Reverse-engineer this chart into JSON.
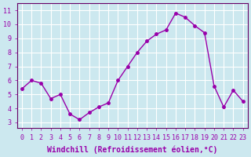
{
  "x": [
    0,
    1,
    2,
    3,
    4,
    5,
    6,
    7,
    8,
    9,
    10,
    11,
    12,
    13,
    14,
    15,
    16,
    17,
    18,
    19,
    20,
    21,
    22,
    23
  ],
  "y": [
    5.4,
    6.0,
    5.8,
    4.7,
    5.0,
    3.6,
    3.2,
    3.7,
    4.1,
    4.4,
    6.0,
    7.0,
    8.0,
    8.8,
    9.3,
    9.6,
    10.8,
    10.5,
    9.9,
    9.4,
    5.6,
    4.1,
    5.3,
    4.5
  ],
  "line_color": "#9900aa",
  "marker": "o",
  "marker_size": 2.5,
  "bg_color": "#cce8ef",
  "grid_color": "#ffffff",
  "xlabel": "Windchill (Refroidissement éolien,°C)",
  "yticks": [
    3,
    4,
    5,
    6,
    7,
    8,
    9,
    10,
    11
  ],
  "xlim": [
    -0.5,
    23.5
  ],
  "ylim": [
    2.6,
    11.5
  ],
  "xticks": [
    0,
    1,
    2,
    3,
    4,
    5,
    6,
    7,
    8,
    9,
    10,
    11,
    12,
    13,
    14,
    15,
    16,
    17,
    18,
    19,
    20,
    21,
    22,
    23
  ],
  "tick_label_size": 6,
  "xlabel_size": 7,
  "spine_color": "#660066"
}
